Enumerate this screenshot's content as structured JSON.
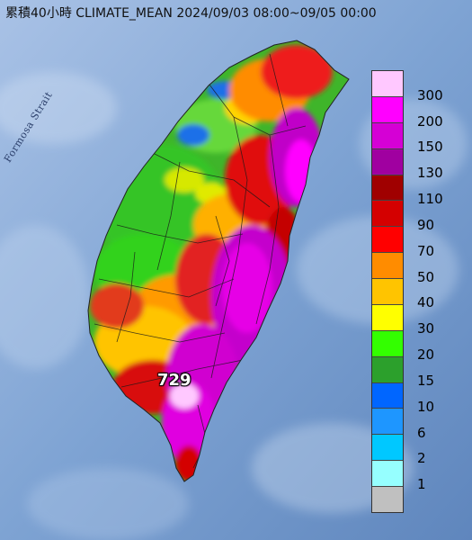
{
  "title": "累積40小時 CLIMATE_MEAN 2024/09/03 08:00~09/05 00:00",
  "sea_label": "Formosa Strait",
  "max_value_label": "729",
  "legend": {
    "labels": [
      "300",
      "200",
      "150",
      "130",
      "110",
      "90",
      "70",
      "50",
      "40",
      "30",
      "20",
      "15",
      "10",
      "6",
      "2",
      "1"
    ],
    "colors": [
      "#ffc8ff",
      "#ff00ff",
      "#d500d5",
      "#a000a0",
      "#a00000",
      "#d40000",
      "#ff0000",
      "#ff8c00",
      "#ffc400",
      "#ffff00",
      "#33ff00",
      "#2ca02c",
      "#0066ff",
      "#1e96ff",
      "#00c8ff",
      "#96ffff",
      "#c0c0c0"
    ]
  },
  "colors": {
    "sea": "#86a9d6",
    "land_far": "#4f9b3c"
  }
}
